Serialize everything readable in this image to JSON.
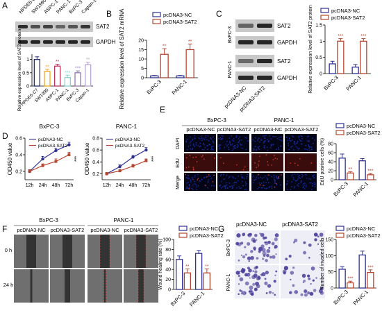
{
  "colors": {
    "nc": "#2e3192",
    "sat": "#b5452f",
    "a_bars": [
      "#1f2d75",
      "#f0a71d",
      "#b3355b",
      "#7fd6d6",
      "#8f79b8",
      "#b7a6d2"
    ],
    "blot_bg": "#c8c8c8",
    "band": "#1e1e1e",
    "dapi": "#1a2ea0",
    "edu": "#3a0c0c",
    "wound": "#6f6f6f",
    "inv_nc": "#4b3e9a",
    "inv_bg": "#eeeef6"
  },
  "panels": {
    "A": {
      "letter": "A",
      "lanes": [
        "HPDE6-C7",
        "SW1990",
        "ASPC-1",
        "PANC-1",
        "BxPC-3",
        "Capan-1"
      ],
      "blots": [
        "SAT2",
        "GAPDH"
      ]
    },
    "B": {
      "letter": "B"
    },
    "C": {
      "letter": "C",
      "lanes": [
        "pcDNA3-NC",
        "pcDNA3-SAT2"
      ],
      "blots": [
        "SAT2",
        "GAPDH",
        "SAT2",
        "GAPDH"
      ],
      "cells": [
        "BxPC-3",
        "PANC-1"
      ]
    },
    "D": {
      "letter": "D"
    },
    "E": {
      "letter": "E",
      "cols": [
        "pcDNA3-NC",
        "pcDNA3-SAT2",
        "pcDNA3-NC",
        "pcDNA3-SAT2"
      ],
      "cells": [
        "BxPC-3",
        "PANC-1"
      ],
      "rows": [
        "DAPI",
        "EdU",
        "Merge"
      ]
    },
    "F": {
      "letter": "F",
      "cols": [
        "pcDNA3-NC",
        "pcDNA3-SAT2",
        "pcDNA3-NC",
        "pcDNA3-SAT2"
      ],
      "cells": [
        "BxPC-3",
        "PANC-1"
      ],
      "rows": [
        "0 h",
        "24 h"
      ]
    },
    "G": {
      "letter": "G",
      "cols": [
        "pcDNA3-NC",
        "pcDNA3-SAT2"
      ],
      "rows": [
        "BxPC-3",
        "PANC-1"
      ]
    }
  },
  "chart_data": [
    {
      "panel": "A",
      "type": "bar",
      "categories": [
        "HPDE6-C7",
        "SW1990",
        "ASPC-1",
        "PANC-1",
        "BxPC-3",
        "Capan-1"
      ],
      "values": [
        1.0,
        0.55,
        0.75,
        0.32,
        0.5,
        0.8
      ],
      "errors": [
        0.1,
        0.08,
        0.07,
        0.09,
        0.07,
        0.1
      ],
      "stars": [
        "",
        "**",
        "**",
        "***",
        "***",
        "**"
      ],
      "ylabel": "Relative expression level of SAT2 protein",
      "ylim": [
        0,
        1.2
      ],
      "yticks": [
        0.0,
        0.5,
        1.0
      ]
    },
    {
      "panel": "B",
      "type": "bar",
      "categories": [
        "BxPC-3",
        "PANC-1"
      ],
      "series": [
        {
          "name": "pcDNA3-NC",
          "values": [
            1,
            1
          ],
          "errors": [
            0.2,
            0.2
          ]
        },
        {
          "name": "pcDNA3-SAT2",
          "values": [
            12.5,
            15
          ],
          "errors": [
            3,
            3
          ],
          "stars": [
            "**",
            "**"
          ]
        }
      ],
      "ylabel": "Relative expression level of SAT2 mRNA",
      "ylim": [
        0,
        20
      ],
      "yticks": [
        0,
        5,
        10,
        15,
        20
      ]
    },
    {
      "panel": "C",
      "type": "bar",
      "categories": [
        "BxPC-3",
        "PANC-1"
      ],
      "series": [
        {
          "name": "pcDNA3-NC",
          "values": [
            0.3,
            0.2
          ],
          "errors": [
            0.08,
            0.08
          ]
        },
        {
          "name": "pcDNA3-SAT2",
          "values": [
            1.0,
            1.0
          ],
          "errors": [
            0.08,
            0.08
          ],
          "stars": [
            "***",
            "***"
          ]
        }
      ],
      "ylabel": "Relative expression level of SAT2 protein",
      "ylim": [
        0,
        1.5
      ],
      "yticks": [
        0.0,
        0.5,
        1.0,
        1.5
      ]
    },
    {
      "panel": "D",
      "type": "line",
      "title": "BxPC-3",
      "x": [
        "12h",
        "24h",
        "48h",
        "72h"
      ],
      "series": [
        {
          "name": "pcDNA3-NC",
          "values": [
            0.2,
            0.35,
            0.45,
            0.52
          ],
          "errors": [
            0.02,
            0.03,
            0.03,
            0.03
          ]
        },
        {
          "name": "pcDNA3-SAT2",
          "values": [
            0.2,
            0.27,
            0.32,
            0.4
          ],
          "errors": [
            0.02,
            0.02,
            0.03,
            0.03
          ]
        }
      ],
      "stars": "***",
      "ylabel": "OD450 value",
      "ylim": [
        0.1,
        0.6
      ],
      "yticks": [
        0.2,
        0.4,
        0.6
      ]
    },
    {
      "panel": "D",
      "type": "line",
      "title": "PANC-1",
      "x": [
        "12h",
        "24h",
        "48h",
        "72h"
      ],
      "series": [
        {
          "name": "pcDNA3-NC",
          "values": [
            0.2,
            0.32,
            0.48,
            0.6
          ],
          "errors": [
            0.02,
            0.03,
            0.03,
            0.04
          ]
        },
        {
          "name": "pcDNA3-SAT2",
          "values": [
            0.2,
            0.25,
            0.33,
            0.42
          ],
          "errors": [
            0.02,
            0.02,
            0.03,
            0.03
          ]
        }
      ],
      "stars": "***",
      "ylabel": "OD450 value",
      "ylim": [
        0.1,
        0.8
      ],
      "yticks": [
        0.2,
        0.4,
        0.6,
        0.8
      ]
    },
    {
      "panel": "E",
      "type": "bar",
      "categories": [
        "BxPC-3",
        "PANC-1"
      ],
      "series": [
        {
          "name": "pcDNA3-NC",
          "values": [
            48,
            42
          ],
          "errors": [
            9,
            5
          ]
        },
        {
          "name": "pcDNA3-SAT2",
          "values": [
            15,
            11
          ],
          "errors": [
            3,
            3
          ],
          "stars": [
            "**",
            "***"
          ]
        }
      ],
      "ylabel": "EdU positive cells (%)",
      "ylim": [
        0,
        80
      ],
      "yticks": [
        0,
        20,
        40,
        60,
        80
      ]
    },
    {
      "panel": "F",
      "type": "bar",
      "categories": [
        "BxPC-3",
        "PANC-1"
      ],
      "series": [
        {
          "name": "pcDNA3-NC",
          "values": [
            60,
            72
          ],
          "errors": [
            7,
            6
          ]
        },
        {
          "name": "pcDNA3-SAT2",
          "values": [
            33,
            33
          ],
          "errors": [
            8,
            8
          ],
          "stars": [
            "**",
            "**"
          ]
        }
      ],
      "ylabel": "Wound healing rate (%)",
      "ylim": [
        0,
        100
      ],
      "yticks": [
        0,
        20,
        40,
        60,
        80,
        100
      ]
    },
    {
      "panel": "G",
      "type": "bar",
      "categories": [
        "BxPC-3",
        "PANC-1"
      ],
      "series": [
        {
          "name": "pcDNA3-NC",
          "values": [
            58,
            102
          ],
          "errors": [
            8,
            12
          ]
        },
        {
          "name": "pcDNA3-SAT2",
          "values": [
            16,
            48
          ],
          "errors": [
            5,
            8
          ],
          "stars": [
            "***",
            "***"
          ]
        }
      ],
      "ylabel": "Number of invaded cells",
      "ylim": [
        0,
        150
      ],
      "yticks": [
        0,
        50,
        100,
        150
      ]
    }
  ]
}
